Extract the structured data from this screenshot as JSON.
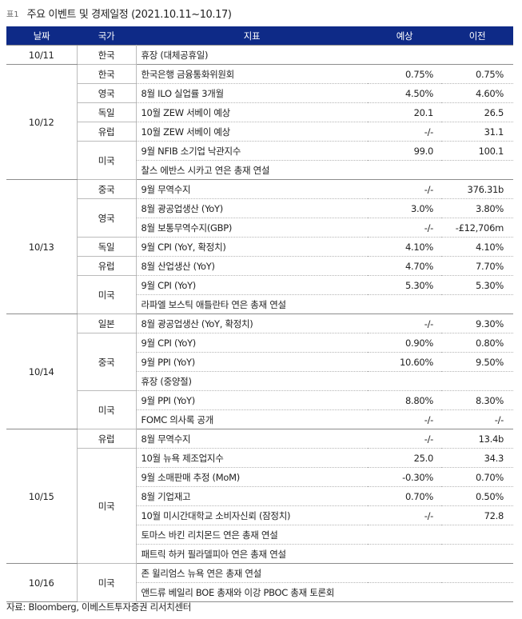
{
  "caption": {
    "tag": "표1",
    "title": "주요 이벤트 및 경제일정 (2021.10.11~10.17)"
  },
  "headers": {
    "date": "날짜",
    "country": "국가",
    "indicator": "지표",
    "forecast": "예상",
    "previous": "이전"
  },
  "groups": [
    {
      "date": "10/11",
      "countries": [
        {
          "name": "한국",
          "rows": [
            {
              "ind": "휴장 (대체공휴일)",
              "f": "",
              "p": ""
            }
          ]
        }
      ]
    },
    {
      "date": "10/12",
      "countries": [
        {
          "name": "한국",
          "rows": [
            {
              "ind": "한국은행 금융통화위원회",
              "f": "0.75%",
              "p": "0.75%"
            }
          ]
        },
        {
          "name": "영국",
          "rows": [
            {
              "ind": "8월 ILO 실업률 3개월",
              "f": "4.50%",
              "p": "4.60%"
            }
          ]
        },
        {
          "name": "독일",
          "rows": [
            {
              "ind": "10월 ZEW 서베이 예상",
              "f": "20.1",
              "p": "26.5"
            }
          ]
        },
        {
          "name": "유럽",
          "rows": [
            {
              "ind": "10월 ZEW 서베이 예상",
              "f": "-/-",
              "p": "31.1"
            }
          ]
        },
        {
          "name": "미국",
          "rows": [
            {
              "ind": "9월 NFIB 소기업 낙관지수",
              "f": "99.0",
              "p": "100.1"
            },
            {
              "ind": "찰스 에반스 시카고 연은 총재 연설",
              "f": "",
              "p": ""
            }
          ]
        }
      ]
    },
    {
      "date": "10/13",
      "countries": [
        {
          "name": "중국",
          "rows": [
            {
              "ind": "9월 무역수지",
              "f": "-/-",
              "p": "376.31b"
            }
          ]
        },
        {
          "name": "영국",
          "rows": [
            {
              "ind": "8월 광공업생산 (YoY)",
              "f": "3.0%",
              "p": "3.80%"
            },
            {
              "ind": "8월 보통무역수지(GBP)",
              "f": "-/-",
              "p": "-£12,706m"
            }
          ]
        },
        {
          "name": "독일",
          "rows": [
            {
              "ind": "9월 CPI (YoY, 확정치)",
              "f": "4.10%",
              "p": "4.10%"
            }
          ]
        },
        {
          "name": "유럽",
          "rows": [
            {
              "ind": "8월 산업생산 (YoY)",
              "f": "4.70%",
              "p": "7.70%"
            }
          ]
        },
        {
          "name": "미국",
          "rows": [
            {
              "ind": "9월 CPI (YoY)",
              "f": "5.30%",
              "p": "5.30%"
            },
            {
              "ind": "라파엘 보스틱 애틀란타 연은 총재 연설",
              "f": "",
              "p": ""
            }
          ]
        }
      ]
    },
    {
      "date": "10/14",
      "countries": [
        {
          "name": "일본",
          "rows": [
            {
              "ind": "8월 광공업생산 (YoY, 확정치)",
              "f": "-/-",
              "p": "9.30%"
            }
          ]
        },
        {
          "name": "중국",
          "rows": [
            {
              "ind": "9월 CPI (YoY)",
              "f": "0.90%",
              "p": "0.80%"
            },
            {
              "ind": "9월 PPI (YoY)",
              "f": "10.60%",
              "p": "9.50%"
            },
            {
              "ind": "휴장 (중양절)",
              "f": "",
              "p": ""
            }
          ]
        },
        {
          "name": "미국",
          "rows": [
            {
              "ind": "9월 PPI (YoY)",
              "f": "8.80%",
              "p": "8.30%"
            },
            {
              "ind": "FOMC 의사록 공개",
              "f": "-/-",
              "p": "-/-"
            }
          ]
        }
      ]
    },
    {
      "date": "10/15",
      "countries": [
        {
          "name": "유럽",
          "rows": [
            {
              "ind": "8월 무역수지",
              "f": "-/-",
              "p": "13.4b"
            }
          ]
        },
        {
          "name": "미국",
          "rows": [
            {
              "ind": "10월 뉴욕 제조업지수",
              "f": "25.0",
              "p": "34.3"
            },
            {
              "ind": "9월 소매판매 추정 (MoM)",
              "f": "-0.30%",
              "p": "0.70%"
            },
            {
              "ind": "8월 기업재고",
              "f": "0.70%",
              "p": "0.50%"
            },
            {
              "ind": "10월 미시간대학교 소비자신뢰 (잠정치)",
              "f": "-/-",
              "p": "72.8"
            },
            {
              "ind": "토마스 바킨 리치몬드 연은 총재 연설",
              "f": "",
              "p": ""
            },
            {
              "ind": "패트릭 하커 필라델피아 연은 총재 연설",
              "f": "",
              "p": ""
            }
          ]
        }
      ]
    },
    {
      "date": "10/16",
      "countries": [
        {
          "name": "미국",
          "rows": [
            {
              "ind": "존 윌리엄스 뉴욕 연은 총재 연설",
              "f": "",
              "p": ""
            },
            {
              "ind": "앤드류 베일리 BOE 총재와 이강 PBOC 총재 토론회",
              "f": "",
              "p": ""
            }
          ]
        }
      ]
    }
  ],
  "source": "자료: Bloomberg, 이베스트투자증권 리서치센터",
  "colors": {
    "header_bg": "#0e2a87",
    "header_text": "#ffffff"
  }
}
